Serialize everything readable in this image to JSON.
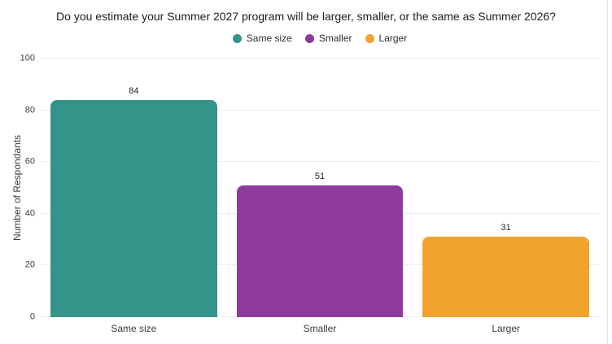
{
  "page": {
    "background": "#ffffff"
  },
  "chart_data": {
    "type": "bar",
    "title": "Do you estimate your Summer 2027 program will be larger, smaller, or the same as Summer 2026?",
    "xlabel": "",
    "ylabel": "Number of Respondants",
    "categories": [
      "Same size",
      "Smaller",
      "Larger"
    ],
    "values": [
      84,
      51,
      31
    ],
    "bar_colors": [
      "#34948A",
      "#8E3A9E",
      "#F0A42E"
    ],
    "legend": [
      {
        "label": "Same size",
        "color": "#34948A"
      },
      {
        "label": "Smaller",
        "color": "#8E3A9E"
      },
      {
        "label": "Larger",
        "color": "#F0A42E"
      }
    ],
    "legend_position": "top-center",
    "yticks": [
      0,
      20,
      40,
      60,
      80,
      100
    ],
    "ylim": [
      0,
      100
    ],
    "grid": true,
    "gridline_color": "#EDEDF0"
  }
}
